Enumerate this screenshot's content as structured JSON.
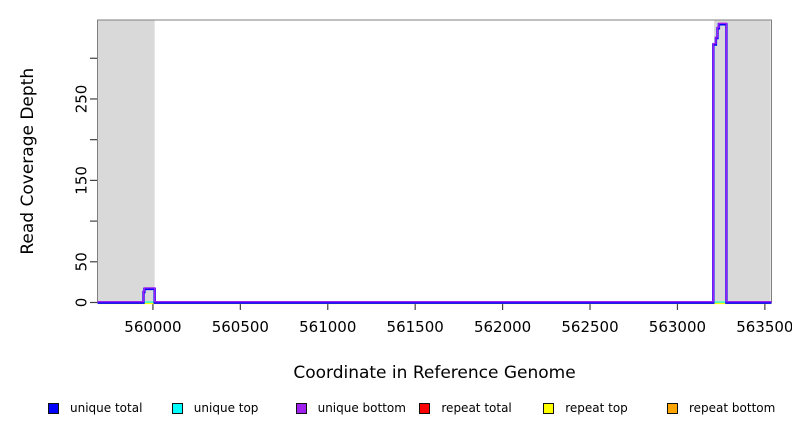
{
  "figure": {
    "background": "#ffffff",
    "box_color": "#7f7f7f",
    "tick_color": "#404040",
    "text_color": "#000000"
  },
  "chart_data": {
    "type": "line",
    "title": "",
    "xlabel": "Coordinate in Reference Genome",
    "ylabel": "Read Coverage Depth",
    "xlim": [
      559683,
      563538
    ],
    "ylim": [
      0,
      347
    ],
    "grid": false,
    "legend_position": "bottom",
    "shaded_regions": [
      {
        "x0": 559683,
        "x1": 560010,
        "color": "#d9d9d9"
      },
      {
        "x0": 563210,
        "x1": 563533,
        "color": "#d9d9d9"
      }
    ],
    "x_ticks": [
      {
        "value": 560000,
        "label": "560000"
      },
      {
        "value": 560500,
        "label": "560500"
      },
      {
        "value": 561000,
        "label": "561000"
      },
      {
        "value": 561500,
        "label": "561500"
      },
      {
        "value": 562000,
        "label": "562000"
      },
      {
        "value": 562500,
        "label": "562500"
      },
      {
        "value": 563000,
        "label": "563000"
      },
      {
        "value": 563500,
        "label": "563500"
      }
    ],
    "y_ticks": [
      {
        "value": 0,
        "label": "0"
      },
      {
        "value": 50,
        "label": "50"
      },
      {
        "value": 100,
        "label": ""
      },
      {
        "value": 150,
        "label": "150"
      },
      {
        "value": 200,
        "label": ""
      },
      {
        "value": 250,
        "label": "250"
      },
      {
        "value": 300,
        "label": ""
      }
    ],
    "series": [
      {
        "name": "repeat total",
        "color": "#ff0000",
        "stroke_width": 1.5,
        "dy": 0,
        "opacity": 1,
        "points": [
          [
            559683,
            0
          ],
          [
            563538,
            0
          ]
        ]
      },
      {
        "name": "repeat bottom",
        "color": "#ffa500",
        "stroke_width": 1.5,
        "dy": 0,
        "opacity": 1,
        "points": [
          [
            559683,
            0
          ],
          [
            563538,
            0
          ]
        ]
      },
      {
        "name": "repeat top",
        "color": "#ffff00",
        "stroke_width": 2.6,
        "dy": 0.3,
        "opacity": 1,
        "points": [
          [
            559683,
            0
          ],
          [
            563538,
            0
          ]
        ]
      },
      {
        "name": "unique top",
        "color": "#00ffff",
        "stroke_width": 1.8,
        "dy": -0.4,
        "opacity": 0.7,
        "points": [
          [
            559683,
            0
          ],
          [
            563538,
            0
          ]
        ]
      },
      {
        "name": "unique total",
        "color": "#0000ff",
        "stroke_width": 2.4,
        "dy": 0.2,
        "opacity": 1,
        "points": [
          [
            559683,
            0
          ],
          [
            559946,
            0
          ],
          [
            559946,
            13
          ],
          [
            559951,
            13
          ],
          [
            559951,
            17
          ],
          [
            560010,
            17
          ],
          [
            560010,
            0
          ],
          [
            563205,
            0
          ],
          [
            563205,
            317
          ],
          [
            563220,
            317
          ],
          [
            563220,
            325
          ],
          [
            563229,
            325
          ],
          [
            563229,
            337
          ],
          [
            563237,
            337
          ],
          [
            563237,
            342
          ],
          [
            563280,
            342
          ],
          [
            563280,
            0
          ],
          [
            563538,
            0
          ]
        ]
      },
      {
        "name": "unique bottom",
        "color": "#a020f0",
        "stroke_width": 1.4,
        "dy": -0.8,
        "opacity": 1,
        "points": [
          [
            559683,
            0
          ],
          [
            559946,
            0
          ],
          [
            559946,
            13
          ],
          [
            559951,
            13
          ],
          [
            559951,
            17
          ],
          [
            560010,
            17
          ],
          [
            560010,
            0
          ],
          [
            563205,
            0
          ],
          [
            563205,
            317
          ],
          [
            563220,
            317
          ],
          [
            563220,
            325
          ],
          [
            563229,
            325
          ],
          [
            563229,
            337
          ],
          [
            563237,
            337
          ],
          [
            563237,
            342
          ],
          [
            563280,
            342
          ],
          [
            563280,
            0
          ],
          [
            563538,
            0
          ]
        ]
      }
    ]
  },
  "legend": {
    "items": [
      {
        "label": "unique total",
        "color": "#0000ff"
      },
      {
        "label": "unique top",
        "color": "#00ffff"
      },
      {
        "label": "unique bottom",
        "color": "#a020f0"
      },
      {
        "label": "repeat total",
        "color": "#ff0000"
      },
      {
        "label": "repeat top",
        "color": "#ffff00"
      },
      {
        "label": "repeat bottom",
        "color": "#ffa500"
      }
    ]
  }
}
